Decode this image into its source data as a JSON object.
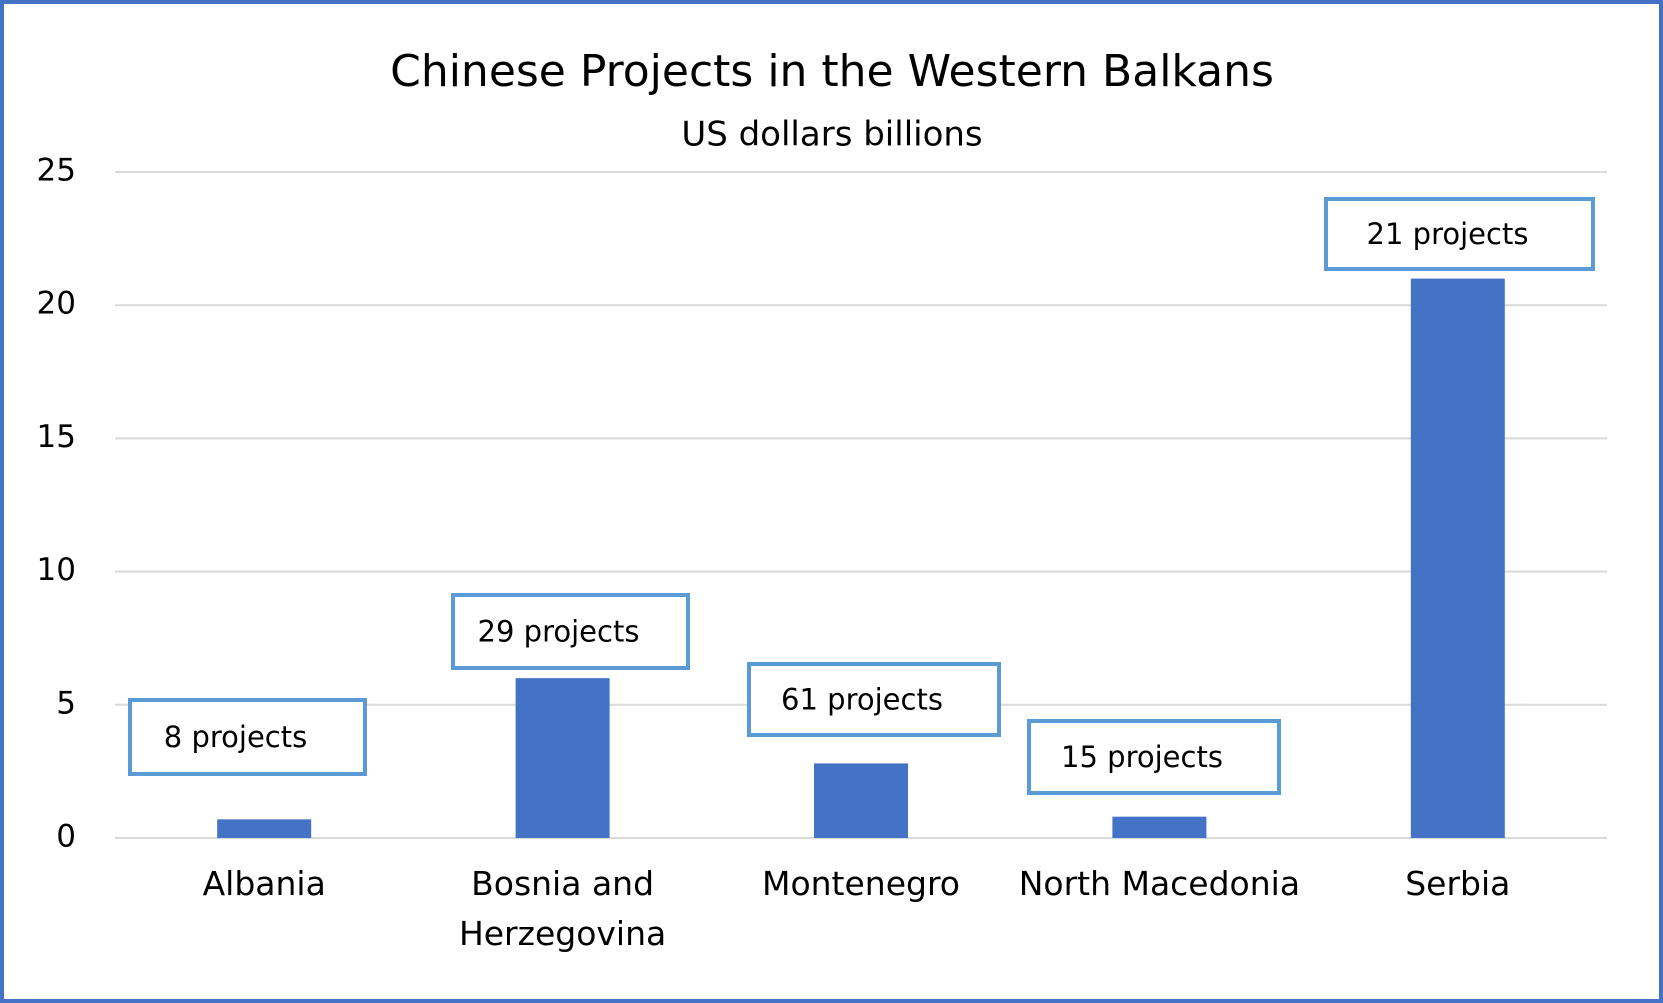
{
  "chart_data": {
    "type": "bar",
    "title": "Chinese Projects in the Western Balkans",
    "subtitle": "US dollars billions",
    "categories": [
      "Albania",
      "Bosnia and Herzegovina",
      "Montenegro",
      "North Macedonia",
      "Serbia"
    ],
    "values": [
      0.7,
      6,
      2.8,
      0.8,
      21
    ],
    "color": "#4472c4",
    "annotations": [
      "8 projects",
      "29 projects",
      "61 projects",
      "15 projects",
      "21 projects"
    ],
    "ylim": [
      0,
      25
    ],
    "yticks": [
      0,
      5,
      10,
      15,
      20,
      25
    ],
    "grid": true
  }
}
